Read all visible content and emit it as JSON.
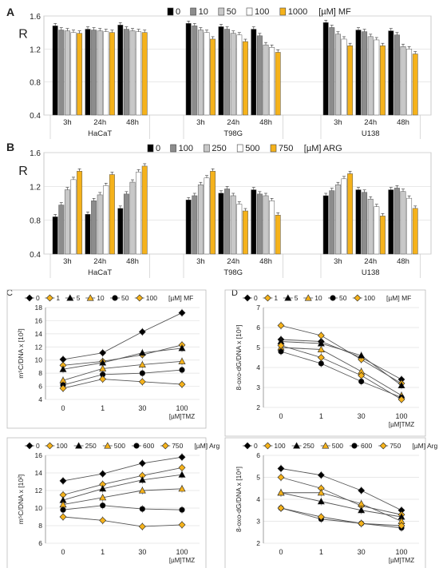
{
  "colors": {
    "s0": "#000000",
    "s1": "#8c8c8c",
    "s2": "#c8c8c8",
    "s3": "#ffffff",
    "s4": "#f5b21b",
    "accent": "#f5b21b"
  },
  "chart_data": [
    {
      "panel": "A",
      "type": "bar",
      "ylabel": "R",
      "ylim": [
        0.4,
        1.6
      ],
      "yticks": [
        "0.4",
        "0.8",
        "1.2",
        "1.6"
      ],
      "legend": {
        "labels": [
          "0",
          "10",
          "50",
          "100",
          "1000"
        ],
        "unit": "[µM] MF"
      },
      "groups": [
        {
          "name": "HaCaT",
          "times": [
            {
              "label": "3h",
              "values": [
                1.48,
                1.43,
                1.42,
                1.4,
                1.39
              ]
            },
            {
              "label": "24h",
              "values": [
                1.44,
                1.43,
                1.42,
                1.41,
                1.4
              ]
            },
            {
              "label": "48h",
              "values": [
                1.49,
                1.44,
                1.42,
                1.41,
                1.4
              ]
            }
          ]
        },
        {
          "name": "T98G",
          "times": [
            {
              "label": "3h",
              "values": [
                1.51,
                1.48,
                1.43,
                1.4,
                1.32
              ]
            },
            {
              "label": "24h",
              "values": [
                1.47,
                1.44,
                1.39,
                1.37,
                1.29
              ]
            },
            {
              "label": "48h",
              "values": [
                1.44,
                1.36,
                1.25,
                1.22,
                1.16
              ]
            }
          ]
        },
        {
          "name": "U138",
          "times": [
            {
              "label": "3h",
              "values": [
                1.52,
                1.46,
                1.38,
                1.32,
                1.24
              ]
            },
            {
              "label": "24h",
              "values": [
                1.43,
                1.41,
                1.35,
                1.31,
                1.24
              ]
            },
            {
              "label": "48h",
              "values": [
                1.42,
                1.37,
                1.23,
                1.2,
                1.14
              ]
            }
          ]
        }
      ]
    },
    {
      "panel": "B",
      "type": "bar",
      "ylabel": "R",
      "ylim": [
        0.4,
        1.6
      ],
      "yticks": [
        "0.4",
        "0.8",
        "1.2",
        "1.6"
      ],
      "legend": {
        "labels": [
          "0",
          "100",
          "250",
          "500",
          "750"
        ],
        "unit": "[µM] ARG"
      },
      "groups": [
        {
          "name": "HaCaT",
          "times": [
            {
              "label": "3h",
              "values": [
                0.84,
                0.98,
                1.16,
                1.28,
                1.38
              ]
            },
            {
              "label": "24h",
              "values": [
                0.87,
                1.03,
                1.1,
                1.21,
                1.34
              ]
            },
            {
              "label": "48h",
              "values": [
                0.94,
                1.11,
                1.25,
                1.37,
                1.44
              ]
            }
          ]
        },
        {
          "name": "T98G",
          "times": [
            {
              "label": "3h",
              "values": [
                1.04,
                1.09,
                1.22,
                1.3,
                1.38
              ]
            },
            {
              "label": "24h",
              "values": [
                1.12,
                1.17,
                1.09,
                0.99,
                0.91
              ]
            },
            {
              "label": "48h",
              "values": [
                1.16,
                1.11,
                1.09,
                1.03,
                0.86
              ]
            }
          ]
        },
        {
          "name": "U138",
          "times": [
            {
              "label": "3h",
              "values": [
                1.09,
                1.15,
                1.22,
                1.29,
                1.35
              ]
            },
            {
              "label": "24h",
              "values": [
                1.16,
                1.13,
                1.05,
                0.96,
                0.85
              ]
            },
            {
              "label": "48h",
              "values": [
                1.16,
                1.18,
                1.14,
                1.06,
                0.94
              ]
            }
          ]
        }
      ]
    },
    {
      "panel": "C",
      "type": "line",
      "ylabel": "m⁵C/DNA x [10²]",
      "ylim": [
        4,
        18
      ],
      "yticks": [
        "4",
        "6",
        "8",
        "10",
        "12",
        "14",
        "16",
        "18"
      ],
      "x": [
        "0",
        "1",
        "30",
        "100"
      ],
      "xlabel": "[µM]TMZ",
      "legend": {
        "labels": [
          "0",
          "1",
          "5",
          "10",
          "50",
          "100"
        ],
        "unit": "[µM]  MF"
      },
      "series": [
        {
          "name": "0",
          "marker": "diamond",
          "fill": "#000",
          "values": [
            10.1,
            11.1,
            14.3,
            17.2
          ]
        },
        {
          "name": "1",
          "marker": "diamond",
          "fill": "#f5b21b",
          "values": [
            9.2,
            9.8,
            10.8,
            12.3
          ]
        },
        {
          "name": "5",
          "marker": "triangle",
          "fill": "#000",
          "values": [
            8.6,
            9.6,
            11.1,
            11.8
          ]
        },
        {
          "name": "10",
          "marker": "triangle",
          "fill": "#f5b21b",
          "values": [
            6.9,
            8.7,
            9.3,
            9.8
          ]
        },
        {
          "name": "50",
          "marker": "circle",
          "fill": "#000",
          "values": [
            6.2,
            7.8,
            8.0,
            8.5
          ]
        },
        {
          "name": "100",
          "marker": "diamond",
          "fill": "#f5b21b",
          "values": [
            5.7,
            7.1,
            6.7,
            6.3
          ]
        }
      ]
    },
    {
      "panel": "D",
      "type": "line",
      "ylabel": "8-oxo-dG/DNA x [10⁶]",
      "ylim": [
        2,
        7
      ],
      "yticks": [
        "2",
        "3",
        "4",
        "5",
        "6",
        "7"
      ],
      "x": [
        "0",
        "1",
        "30",
        "100"
      ],
      "xlabel": "[µM]TMZ",
      "legend": {
        "labels": [
          "0",
          "1",
          "5",
          "10",
          "50",
          "100"
        ],
        "unit": "[µM]  MF"
      },
      "series": [
        {
          "name": "0",
          "marker": "diamond",
          "fill": "#000",
          "values": [
            5.4,
            5.3,
            4.5,
            3.4
          ]
        },
        {
          "name": "1",
          "marker": "diamond",
          "fill": "#f5b21b",
          "values": [
            6.1,
            5.6,
            4.4,
            3.2
          ]
        },
        {
          "name": "5",
          "marker": "triangle",
          "fill": "#000",
          "values": [
            5.3,
            5.2,
            4.6,
            3.1
          ]
        },
        {
          "name": "10",
          "marker": "triangle",
          "fill": "#f5b21b",
          "values": [
            5.0,
            4.9,
            3.8,
            2.6
          ]
        },
        {
          "name": "50",
          "marker": "circle",
          "fill": "#000",
          "values": [
            4.8,
            4.2,
            3.3,
            2.5
          ]
        },
        {
          "name": "100",
          "marker": "diamond",
          "fill": "#f5b21b",
          "values": [
            5.1,
            4.5,
            3.6,
            2.4
          ]
        }
      ]
    },
    {
      "panel": "C2",
      "type": "line",
      "ylabel": "m⁵C/DNA x [10²]",
      "ylim": [
        6,
        16
      ],
      "yticks": [
        "6",
        "8",
        "10",
        "12",
        "14",
        "16"
      ],
      "x": [
        "0",
        "1",
        "30",
        "100"
      ],
      "xlabel": "[µM]TMZ",
      "legend": {
        "labels": [
          "0",
          "100",
          "250",
          "500",
          "600",
          "750"
        ],
        "unit": "[µM]  Arg"
      },
      "series": [
        {
          "name": "0",
          "marker": "diamond",
          "fill": "#000",
          "values": [
            13.1,
            13.9,
            15.1,
            15.8
          ]
        },
        {
          "name": "100",
          "marker": "diamond",
          "fill": "#f5b21b",
          "values": [
            11.5,
            12.7,
            13.7,
            14.6
          ]
        },
        {
          "name": "250",
          "marker": "triangle",
          "fill": "#000",
          "values": [
            10.9,
            12.2,
            13.2,
            13.8
          ]
        },
        {
          "name": "500",
          "marker": "triangle",
          "fill": "#f5b21b",
          "values": [
            10.4,
            11.2,
            12.0,
            12.2
          ]
        },
        {
          "name": "600",
          "marker": "circle",
          "fill": "#000",
          "values": [
            9.8,
            10.3,
            9.9,
            9.8
          ]
        },
        {
          "name": "750",
          "marker": "diamond",
          "fill": "#f5b21b",
          "values": [
            9.0,
            8.6,
            7.9,
            8.1
          ]
        }
      ]
    },
    {
      "panel": "D2",
      "type": "line",
      "ylabel": "8-oxo-dG/DNA x [10⁶]",
      "ylim": [
        2,
        6
      ],
      "yticks": [
        "2",
        "3",
        "4",
        "5",
        "6"
      ],
      "x": [
        "0",
        "1",
        "30",
        "100"
      ],
      "xlabel": "[µM]TMZ",
      "legend": {
        "labels": [
          "0",
          "100",
          "250",
          "500",
          "600",
          "750"
        ],
        "unit": "[µM]  Arg"
      },
      "series": [
        {
          "name": "0",
          "marker": "diamond",
          "fill": "#000",
          "values": [
            5.4,
            5.1,
            4.4,
            3.5
          ]
        },
        {
          "name": "100",
          "marker": "diamond",
          "fill": "#f5b21b",
          "values": [
            5.0,
            4.5,
            3.7,
            3.3
          ]
        },
        {
          "name": "250",
          "marker": "triangle",
          "fill": "#000",
          "values": [
            4.3,
            3.9,
            3.5,
            3.2
          ]
        },
        {
          "name": "500",
          "marker": "triangle",
          "fill": "#f5b21b",
          "values": [
            4.3,
            4.3,
            3.8,
            3.0
          ]
        },
        {
          "name": "600",
          "marker": "circle",
          "fill": "#000",
          "values": [
            3.6,
            3.1,
            2.9,
            2.7
          ]
        },
        {
          "name": "750",
          "marker": "diamond",
          "fill": "#f5b21b",
          "values": [
            3.6,
            3.2,
            2.9,
            2.8
          ]
        }
      ]
    }
  ],
  "panel_labels": {
    "A": "A",
    "B": "B",
    "C": "C",
    "D": "D"
  }
}
